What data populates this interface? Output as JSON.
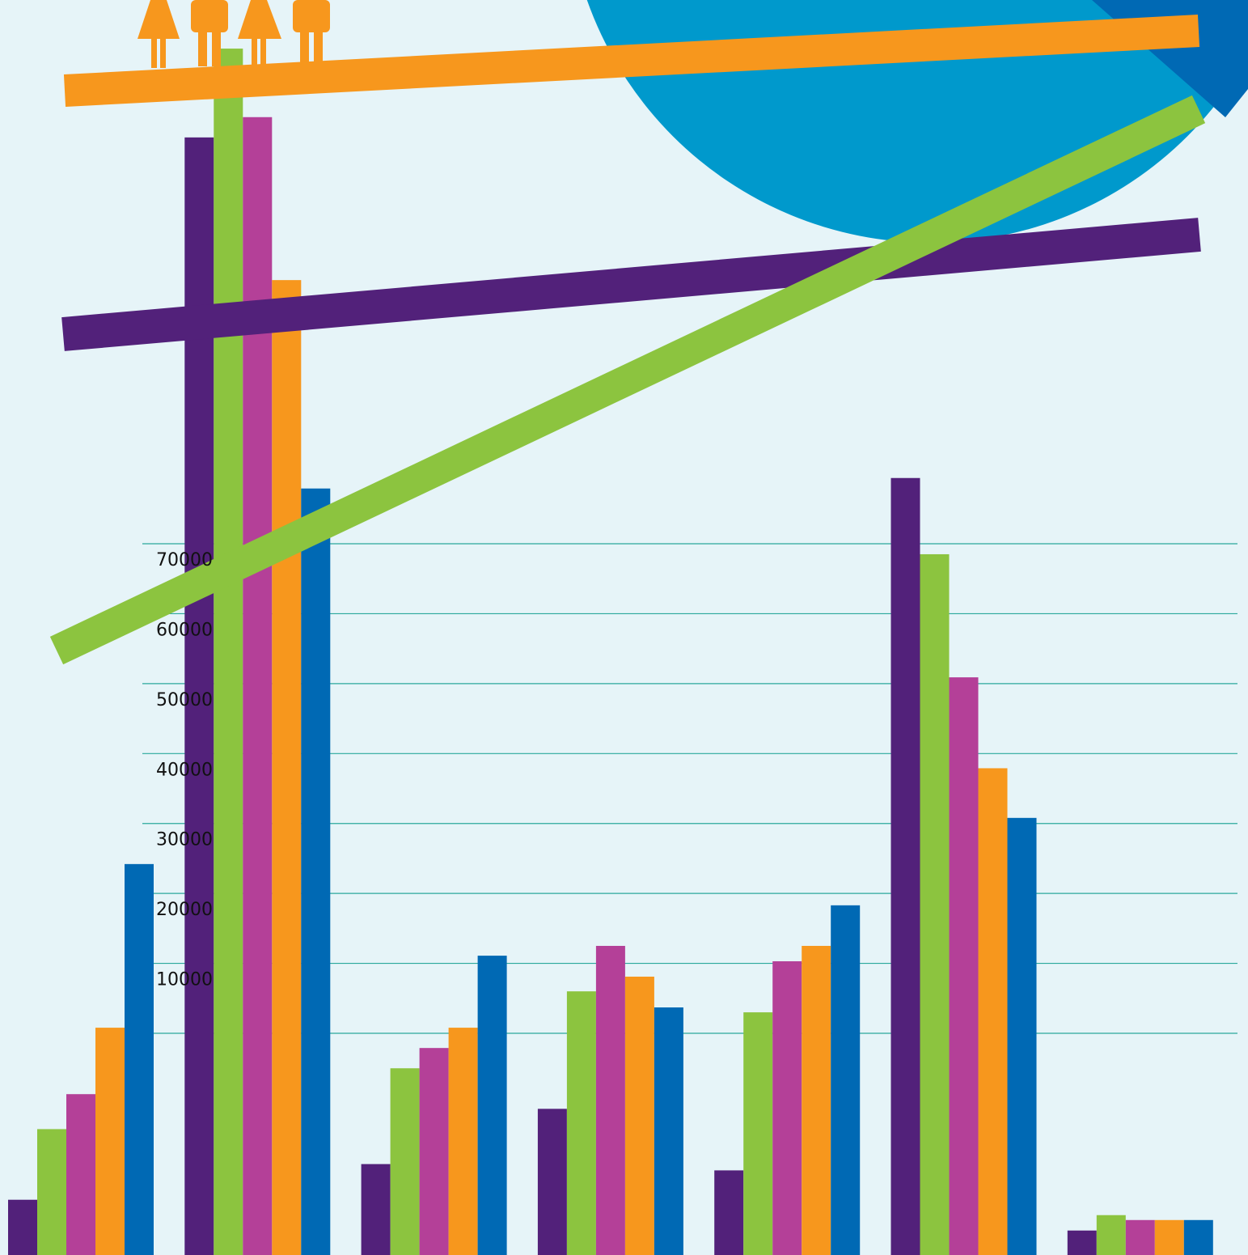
{
  "chart_data": {
    "type": "bar",
    "categories": [
      null,
      null,
      null,
      null,
      null,
      null,
      null
    ],
    "series": [
      {
        "color": "#52217a",
        "values": [
          -23800,
          128100,
          -18700,
          -10800,
          -19600,
          79400,
          -28200
        ]
      },
      {
        "color": "#8cc43f",
        "values": [
          -13700,
          140800,
          -5000,
          6000,
          3000,
          68500,
          -26000
        ]
      },
      {
        "color": "#b44098",
        "values": [
          -8700,
          131000,
          -2100,
          12500,
          10300,
          50900,
          -26700
        ]
      },
      {
        "color": "#f7971d",
        "values": [
          800,
          107700,
          800,
          8100,
          12500,
          37900,
          -26700
        ]
      },
      {
        "color": "#0069b4",
        "values": [
          24200,
          77900,
          11100,
          3700,
          18300,
          30800,
          -26700
        ]
      }
    ],
    "ylim": [
      -31700,
      147750
    ],
    "yticks": [
      10000,
      20000,
      30000,
      40000,
      50000,
      60000,
      70000
    ],
    "grid": true
  }
}
